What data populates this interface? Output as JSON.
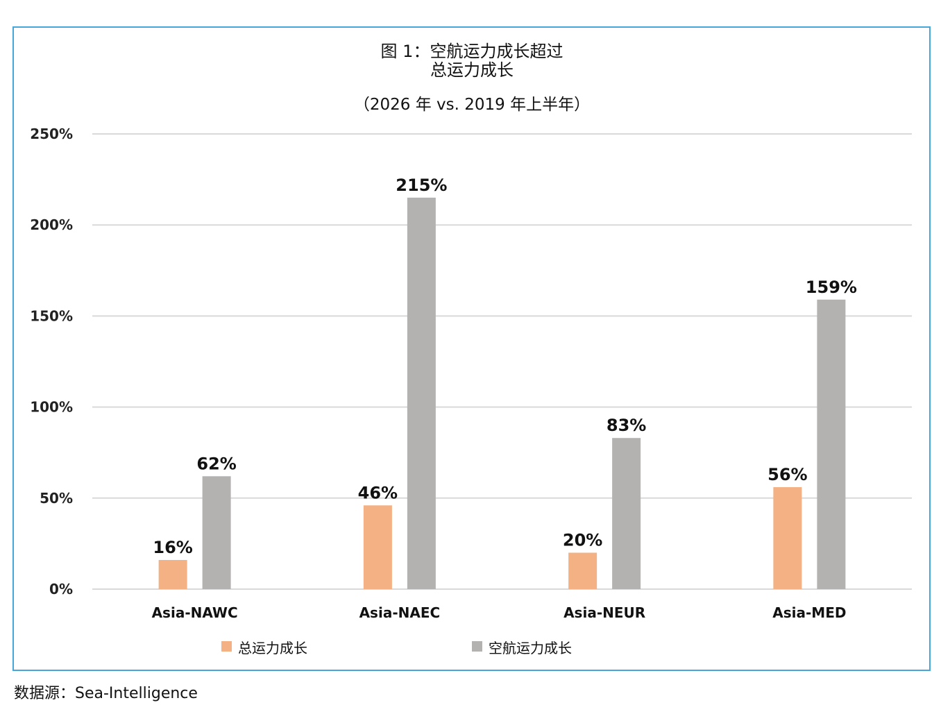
{
  "chart_data": {
    "type": "bar",
    "title_lines": [
      "图 1：空航运力成长超过",
      "总运力成长"
    ],
    "subtitle": "（2026 年 vs. 2019 年上半年）",
    "categories": [
      "Asia-NAWC",
      "Asia-NAEC",
      "Asia-NEUR",
      "Asia-MED"
    ],
    "series": [
      {
        "name": "总运力成长",
        "values": [
          16,
          46,
          20,
          56
        ],
        "labels": [
          "16%",
          "46%",
          "20%",
          "56%"
        ],
        "color": "#f4b183"
      },
      {
        "name": "空航运力成长",
        "values": [
          62,
          215,
          83,
          159
        ],
        "labels": [
          "62%",
          "215%",
          "83%",
          "159%"
        ],
        "color": "#b4b1b1"
      }
    ],
    "ylim": [
      0,
      250
    ],
    "yticks": [
      0,
      50,
      100,
      150,
      200,
      250
    ],
    "ytick_labels": [
      "0%",
      "50%",
      "100%",
      "150%",
      "200%",
      "250%"
    ],
    "grid": true,
    "legend_position": "bottom",
    "xlabel": "",
    "ylabel": ""
  },
  "source": "数据源：Sea-Intelligence",
  "colors": {
    "border": "#46a5d9",
    "grid": "#d9d9d9"
  }
}
